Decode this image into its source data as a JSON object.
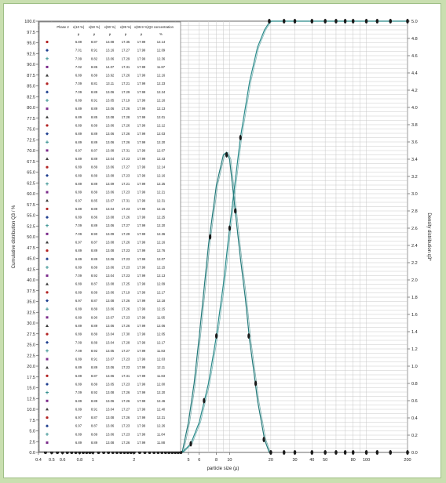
{
  "colors": {
    "page_background": "#c9dfb0",
    "frame_border": "#9fbf86",
    "grid": "#c8c8c8",
    "curve_cumulative": "#2a8a8a",
    "curve_density": "#237a7a",
    "marker": "#1a1a1a",
    "table_marker_palette": [
      "#b22222",
      "#1f3f8f",
      "#2a8a8a",
      "#7a2a8a",
      "#3a3a3a"
    ]
  },
  "chart_data": {
    "type": "line",
    "x_scale": "log",
    "xlabel": "particle size (µ)",
    "ylabel_left": "Cumulative distribution Q3 / %",
    "ylabel_right": "Density distribution q3*",
    "xlim": [
      0.4,
      200
    ],
    "ylim_left": [
      0,
      100
    ],
    "ylim_right": [
      0,
      5.0
    ],
    "grid": true,
    "x_ticks": [
      0.4,
      0.5,
      0.6,
      0.8,
      1,
      2,
      5,
      6,
      8,
      10,
      20,
      30,
      40,
      50,
      80,
      100,
      200
    ],
    "y_ticks_left": [
      "100.0",
      "97.5",
      "95.0",
      "92.5",
      "90.0",
      "87.5",
      "85.0",
      "82.5",
      "80.0",
      "77.5",
      "75.0",
      "72.5",
      "70.0",
      "67.5",
      "65.0",
      "62.5",
      "60.0",
      "57.5",
      "55.0",
      "52.5",
      "50.0",
      "47.5",
      "45.0",
      "42.5",
      "40.0",
      "37.5",
      "35.0",
      "32.5",
      "30.0",
      "27.5",
      "25.0",
      "22.5",
      "20.0",
      "17.5",
      "15.0",
      "12.5",
      "10.0",
      "7.5",
      "5.0",
      "2.5",
      "0.0"
    ],
    "y_ticks_right": [
      "5.0",
      "4.8",
      "4.6",
      "4.4",
      "4.2",
      "4.0",
      "3.8",
      "3.6",
      "3.4",
      "3.2",
      "3.0",
      "2.8",
      "2.6",
      "2.4",
      "2.2",
      "2.0",
      "1.8",
      "1.6",
      "1.4",
      "1.2",
      "1.0",
      "0.8",
      "0.6",
      "0.4",
      "0.2",
      "0.0"
    ],
    "series": [
      {
        "axis": "left",
        "x": [
          4.5,
          5.2,
          6.0,
          7.0,
          8.0,
          9.0,
          10.0,
          11.0,
          12.0,
          14.0,
          16.0,
          18.0,
          19.5,
          20.0,
          30.0,
          40.0,
          60.0,
          100.0,
          150.0,
          200.0
        ],
        "y": [
          0,
          2,
          7,
          16,
          27,
          39,
          52,
          63,
          73,
          86,
          94,
          98,
          99.7,
          100,
          100,
          100,
          100,
          100,
          100,
          100
        ]
      },
      {
        "axis": "right",
        "x": [
          4.5,
          5.0,
          5.5,
          6.0,
          7.0,
          8.0,
          9.0,
          9.5,
          10.0,
          11.0,
          12.0,
          13.0,
          14.0,
          15.0,
          16.0,
          18.0,
          19.5
        ],
        "y": [
          0,
          0.35,
          0.8,
          1.35,
          2.4,
          3.1,
          3.45,
          3.48,
          3.4,
          2.8,
          2.25,
          1.8,
          1.3,
          0.95,
          0.6,
          0.15,
          0
        ]
      }
    ],
    "bottom_markers_x": [
      0.45,
      0.5,
      0.55,
      0.6,
      0.65,
      0.7,
      0.75,
      0.8,
      0.85,
      0.9,
      0.95,
      1.0,
      1.1,
      1.2,
      1.3,
      1.4,
      1.5,
      1.6,
      1.7,
      1.8,
      1.9,
      2.0,
      2.2,
      2.4,
      2.6,
      2.8,
      3.0,
      3.2,
      3.4,
      3.6,
      3.8,
      4.0,
      4.2,
      4.4
    ],
    "right_bottom_markers_x": [
      20,
      25,
      30,
      40,
      50,
      60,
      70,
      80,
      100,
      120,
      150,
      200
    ],
    "top_markers_x": [
      19.5,
      25,
      30,
      40,
      50,
      60,
      70,
      80,
      100,
      120,
      150,
      200
    ],
    "table": {
      "header": [
        "Phase 2",
        "x(10 %)",
        "x(50 %)",
        "x(90 %)",
        "x(99 %)",
        "x(99.9 %)",
        "Q3 concentration"
      ],
      "units": [
        "",
        "µ",
        "µ",
        "µ",
        "µ",
        "µ",
        "%"
      ],
      "rows": [
        [
          "6.89",
          "8.87",
          "13.08",
          "17.35",
          "17.99",
          "12.14"
        ],
        [
          "7.01",
          "8.91",
          "13.16",
          "17.27",
          "17.99",
          "12.09"
        ],
        [
          "7.09",
          "8.82",
          "13.06",
          "17.29",
          "17.99",
          "12.36"
        ],
        [
          "7.02",
          "8.85",
          "14.07",
          "17.31",
          "17.99",
          "11.87"
        ],
        [
          "6.89",
          "8.89",
          "13.92",
          "17.26",
          "17.99",
          "12.16"
        ],
        [
          "7.09",
          "8.81",
          "13.11",
          "17.21",
          "17.99",
          "12.23"
        ],
        [
          "7.09",
          "8.89",
          "13.06",
          "17.29",
          "17.99",
          "12.24"
        ],
        [
          "6.89",
          "8.91",
          "13.05",
          "17.19",
          "17.99",
          "12.16"
        ],
        [
          "6.89",
          "8.89",
          "13.06",
          "17.26",
          "17.99",
          "12.13"
        ],
        [
          "6.89",
          "8.85",
          "13.08",
          "17.28",
          "17.99",
          "12.01"
        ],
        [
          "6.89",
          "8.89",
          "13.06",
          "17.26",
          "17.99",
          "12.12"
        ],
        [
          "6.89",
          "8.89",
          "13.06",
          "17.26",
          "17.99",
          "12.03"
        ],
        [
          "6.89",
          "8.89",
          "13.06",
          "17.26",
          "17.99",
          "12.20"
        ],
        [
          "6.97",
          "8.87",
          "13.08",
          "17.31",
          "17.99",
          "12.07"
        ],
        [
          "6.89",
          "8.89",
          "13.04",
          "17.23",
          "17.99",
          "12.43"
        ],
        [
          "6.89",
          "8.89",
          "13.06",
          "17.27",
          "17.99",
          "12.14"
        ],
        [
          "6.89",
          "8.89",
          "13.08",
          "17.23",
          "17.99",
          "12.16"
        ],
        [
          "6.89",
          "8.89",
          "13.09",
          "17.21",
          "17.99",
          "12.25"
        ],
        [
          "6.89",
          "8.89",
          "13.06",
          "17.23",
          "17.99",
          "12.21"
        ],
        [
          "6.97",
          "8.85",
          "13.07",
          "17.31",
          "17.99",
          "12.31"
        ],
        [
          "6.89",
          "8.89",
          "13.04",
          "17.23",
          "17.99",
          "12.15"
        ],
        [
          "6.89",
          "8.86",
          "13.08",
          "17.26",
          "17.99",
          "12.25"
        ],
        [
          "7.09",
          "8.89",
          "13.06",
          "17.27",
          "17.99",
          "12.20"
        ],
        [
          "7.09",
          "8.90",
          "13.09",
          "17.29",
          "17.99",
          "12.36"
        ],
        [
          "6.97",
          "8.87",
          "13.08",
          "17.26",
          "17.99",
          "12.16"
        ],
        [
          "6.89",
          "8.89",
          "13.08",
          "17.23",
          "17.99",
          "12.76"
        ],
        [
          "6.89",
          "8.89",
          "13.06",
          "17.23",
          "17.99",
          "12.07"
        ],
        [
          "6.89",
          "8.89",
          "13.06",
          "17.23",
          "17.99",
          "12.15"
        ],
        [
          "7.09",
          "8.92",
          "13.04",
          "17.23",
          "17.99",
          "12.13"
        ],
        [
          "6.89",
          "8.87",
          "13.08",
          "17.25",
          "17.99",
          "12.09"
        ],
        [
          "6.89",
          "8.89",
          "13.06",
          "17.19",
          "17.99",
          "12.17"
        ],
        [
          "6.97",
          "8.87",
          "13.08",
          "17.26",
          "17.99",
          "12.18"
        ],
        [
          "6.89",
          "8.89",
          "13.06",
          "17.26",
          "17.99",
          "12.15"
        ],
        [
          "6.89",
          "8.90",
          "13.07",
          "17.23",
          "17.99",
          "11.95"
        ],
        [
          "6.89",
          "8.89",
          "13.06",
          "17.26",
          "17.99",
          "12.06"
        ],
        [
          "6.89",
          "8.89",
          "13.04",
          "17.30",
          "17.99",
          "12.05"
        ],
        [
          "7.09",
          "8.89",
          "13.04",
          "17.28",
          "17.99",
          "12.17"
        ],
        [
          "7.09",
          "8.92",
          "13.05",
          "17.27",
          "17.99",
          "11.83"
        ],
        [
          "6.89",
          "8.91",
          "13.07",
          "17.23",
          "17.99",
          "12.03"
        ],
        [
          "6.89",
          "8.89",
          "13.06",
          "17.23",
          "17.99",
          "12.11"
        ],
        [
          "6.89",
          "8.87",
          "13.06",
          "17.31",
          "17.99",
          "11.83"
        ],
        [
          "6.89",
          "8.89",
          "13.05",
          "17.23",
          "17.99",
          "12.00"
        ],
        [
          "7.09",
          "8.92",
          "13.08",
          "17.26",
          "17.99",
          "12.20"
        ],
        [
          "6.89",
          "8.89",
          "13.06",
          "17.26",
          "17.99",
          "12.46"
        ],
        [
          "6.89",
          "8.91",
          "13.04",
          "17.27",
          "17.99",
          "12.40"
        ],
        [
          "6.97",
          "8.87",
          "13.08",
          "17.26",
          "17.99",
          "12.21"
        ],
        [
          "6.97",
          "8.87",
          "13.06",
          "17.23",
          "17.99",
          "12.26"
        ],
        [
          "6.89",
          "8.89",
          "13.06",
          "17.23",
          "17.99",
          "11.84"
        ],
        [
          "6.89",
          "8.89",
          "13.08",
          "17.26",
          "17.99",
          "11.88"
        ]
      ]
    }
  }
}
